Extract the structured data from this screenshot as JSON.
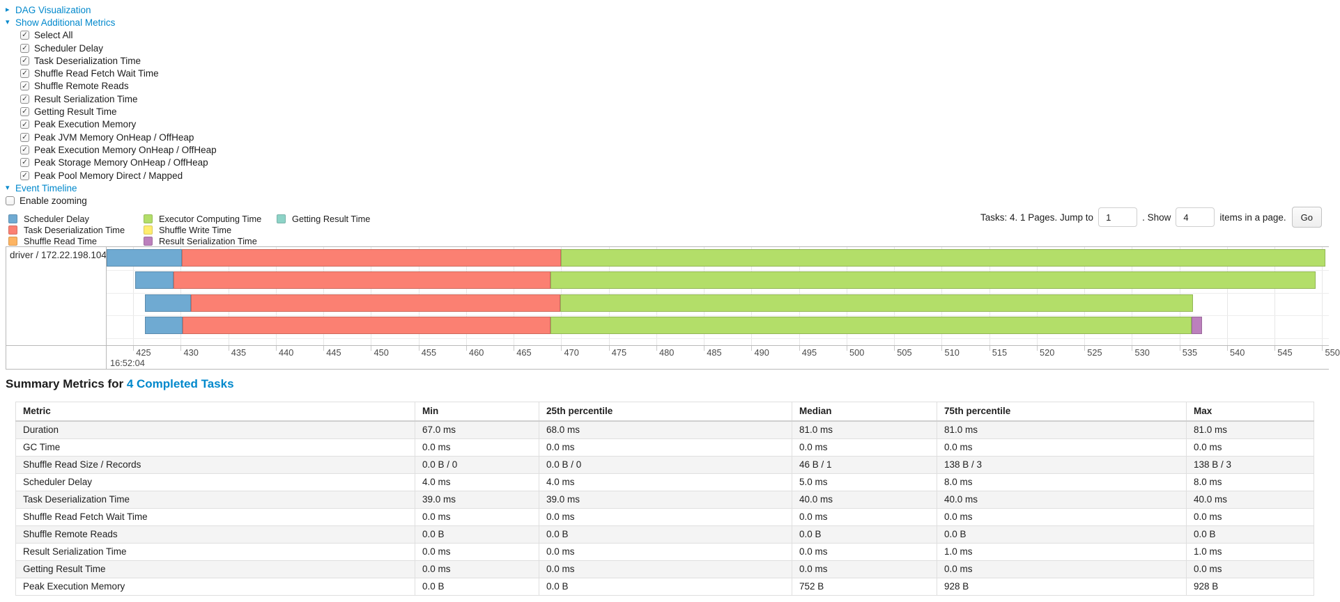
{
  "icons": {
    "collapsed": "▸",
    "expanded": "▾",
    "check": "✓"
  },
  "colors": {
    "link": "#0088cc",
    "scheduler_delay": "#6FAAD2",
    "task_deserialization": "#FB8072",
    "shuffle_read": "#FDB462",
    "executor_computing": "#B3DE69",
    "shuffle_write": "#FFED6F",
    "result_serialization": "#BC80BD",
    "getting_result": "#8DD3C7"
  },
  "sections": {
    "dag": "DAG Visualization",
    "additional_metrics": "Show Additional Metrics",
    "event_timeline": "Event Timeline"
  },
  "metric_checkboxes": [
    {
      "label": "Select All",
      "checked": true
    },
    {
      "label": "Scheduler Delay",
      "checked": true
    },
    {
      "label": "Task Deserialization Time",
      "checked": true
    },
    {
      "label": "Shuffle Read Fetch Wait Time",
      "checked": true
    },
    {
      "label": "Shuffle Remote Reads",
      "checked": true
    },
    {
      "label": "Result Serialization Time",
      "checked": true
    },
    {
      "label": "Getting Result Time",
      "checked": true
    },
    {
      "label": "Peak Execution Memory",
      "checked": true
    },
    {
      "label": "Peak JVM Memory OnHeap / OffHeap",
      "checked": true
    },
    {
      "label": "Peak Execution Memory OnHeap / OffHeap",
      "checked": true
    },
    {
      "label": "Peak Storage Memory OnHeap / OffHeap",
      "checked": true
    },
    {
      "label": "Peak Pool Memory Direct / Mapped",
      "checked": true
    }
  ],
  "enable_zooming": {
    "label": "Enable zooming",
    "checked": false
  },
  "legend_columns": [
    [
      {
        "label": "Scheduler Delay",
        "color_key": "scheduler_delay"
      },
      {
        "label": "Task Deserialization Time",
        "color_key": "task_deserialization"
      },
      {
        "label": "Shuffle Read Time",
        "color_key": "shuffle_read"
      }
    ],
    [
      {
        "label": "Executor Computing Time",
        "color_key": "executor_computing"
      },
      {
        "label": "Shuffle Write Time",
        "color_key": "shuffle_write"
      },
      {
        "label": "Result Serialization Time",
        "color_key": "result_serialization"
      }
    ],
    [
      {
        "label": "Getting Result Time",
        "color_key": "getting_result"
      }
    ]
  ],
  "pagination": {
    "tasks_text": "Tasks: 4. 1 Pages. Jump to",
    "jump_value": "1",
    "show_label": ". Show",
    "show_value": "4",
    "suffix": "items in a page.",
    "go_label": "Go"
  },
  "timeline": {
    "group_label": "driver / 172.22.198.104",
    "base_time_label": "16:52:04",
    "axis_min": 422.2,
    "axis_max": 550.3,
    "ticks": [
      425,
      430,
      435,
      440,
      445,
      450,
      455,
      460,
      465,
      470,
      475,
      480,
      485,
      490,
      495,
      500,
      505,
      510,
      515,
      520,
      525,
      530,
      535,
      540,
      545,
      550
    ],
    "tasks": [
      {
        "segments": [
          {
            "type": "scheduler_delay",
            "start": 422.2,
            "end": 430.1
          },
          {
            "type": "task_deserialization",
            "start": 430.1,
            "end": 470.0
          },
          {
            "type": "executor_computing",
            "start": 470.0,
            "end": 550.3
          }
        ]
      },
      {
        "segments": [
          {
            "type": "scheduler_delay",
            "start": 425.2,
            "end": 429.2
          },
          {
            "type": "task_deserialization",
            "start": 429.2,
            "end": 468.9
          },
          {
            "type": "executor_computing",
            "start": 468.9,
            "end": 549.3
          }
        ]
      },
      {
        "segments": [
          {
            "type": "scheduler_delay",
            "start": 426.2,
            "end": 431.1
          },
          {
            "type": "task_deserialization",
            "start": 431.1,
            "end": 469.9
          },
          {
            "type": "executor_computing",
            "start": 469.9,
            "end": 536.4
          }
        ]
      },
      {
        "segments": [
          {
            "type": "scheduler_delay",
            "start": 426.2,
            "end": 430.2
          },
          {
            "type": "task_deserialization",
            "start": 430.2,
            "end": 468.9
          },
          {
            "type": "executor_computing",
            "start": 468.9,
            "end": 536.3
          },
          {
            "type": "result_serialization",
            "start": 536.3,
            "end": 537.4
          }
        ]
      }
    ]
  },
  "summary": {
    "heading_prefix": "Summary Metrics for ",
    "heading_link": "4 Completed Tasks",
    "columns": [
      "Metric",
      "Min",
      "25th percentile",
      "Median",
      "75th percentile",
      "Max"
    ],
    "rows": [
      [
        "Duration",
        "67.0 ms",
        "68.0 ms",
        "81.0 ms",
        "81.0 ms",
        "81.0 ms"
      ],
      [
        "GC Time",
        "0.0 ms",
        "0.0 ms",
        "0.0 ms",
        "0.0 ms",
        "0.0 ms"
      ],
      [
        "Shuffle Read Size / Records",
        "0.0 B / 0",
        "0.0 B / 0",
        "46 B / 1",
        "138 B / 3",
        "138 B / 3"
      ],
      [
        "Scheduler Delay",
        "4.0 ms",
        "4.0 ms",
        "5.0 ms",
        "8.0 ms",
        "8.0 ms"
      ],
      [
        "Task Deserialization Time",
        "39.0 ms",
        "39.0 ms",
        "40.0 ms",
        "40.0 ms",
        "40.0 ms"
      ],
      [
        "Shuffle Read Fetch Wait Time",
        "0.0 ms",
        "0.0 ms",
        "0.0 ms",
        "0.0 ms",
        "0.0 ms"
      ],
      [
        "Shuffle Remote Reads",
        "0.0 B",
        "0.0 B",
        "0.0 B",
        "0.0 B",
        "0.0 B"
      ],
      [
        "Result Serialization Time",
        "0.0 ms",
        "0.0 ms",
        "0.0 ms",
        "1.0 ms",
        "1.0 ms"
      ],
      [
        "Getting Result Time",
        "0.0 ms",
        "0.0 ms",
        "0.0 ms",
        "0.0 ms",
        "0.0 ms"
      ],
      [
        "Peak Execution Memory",
        "0.0 B",
        "0.0 B",
        "752 B",
        "928 B",
        "928 B"
      ]
    ]
  }
}
